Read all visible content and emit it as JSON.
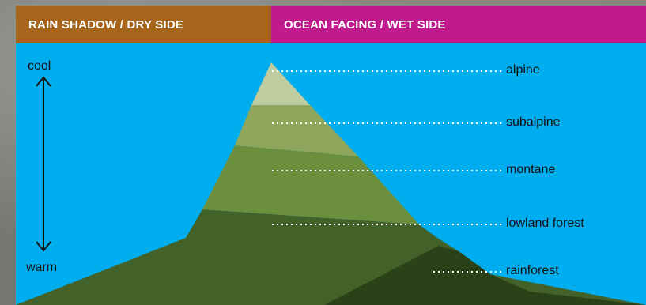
{
  "headers": {
    "dry_side": "RAIN SHADOW / DRY SIDE",
    "wet_side": "OCEAN FACING / WET SIDE"
  },
  "temperature_scale": {
    "top_label": "cool",
    "bottom_label": "warm"
  },
  "zones": [
    {
      "label": "alpine",
      "color": "#bfcca0"
    },
    {
      "label": "subalpine",
      "color": "#8ea75c"
    },
    {
      "label": "montane",
      "color": "#6b8f3d"
    },
    {
      "label": "lowland forest",
      "color": "#42622a"
    },
    {
      "label": "rainforest",
      "color": "#2b4219"
    }
  ],
  "colors": {
    "sky": "#00adee",
    "dry_header": "#a6651a",
    "wet_header": "#bf1b8d",
    "leader_line": "#ffffff"
  }
}
